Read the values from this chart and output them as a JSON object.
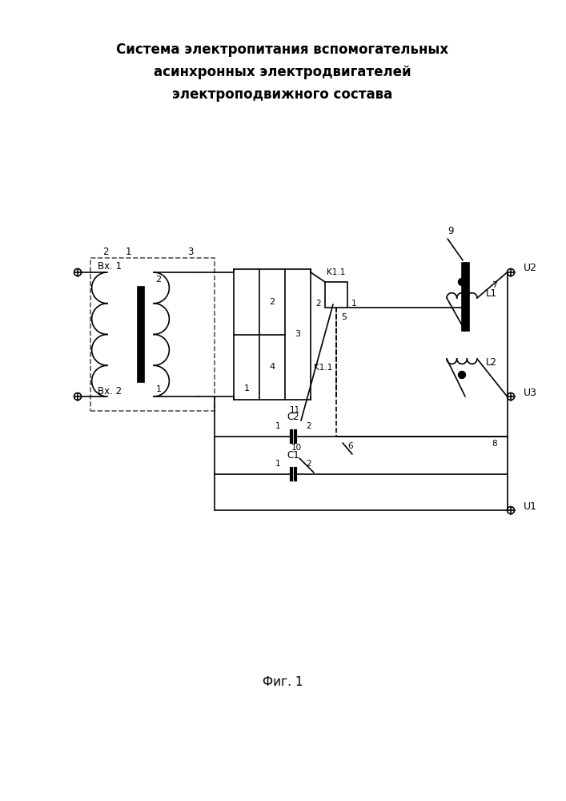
{
  "title_line1": "Система электропитания вспомогательных",
  "title_line2": "асинхронных электродвигателей",
  "title_line3": "электроподвижного состава",
  "caption": "Фиг. 1"
}
